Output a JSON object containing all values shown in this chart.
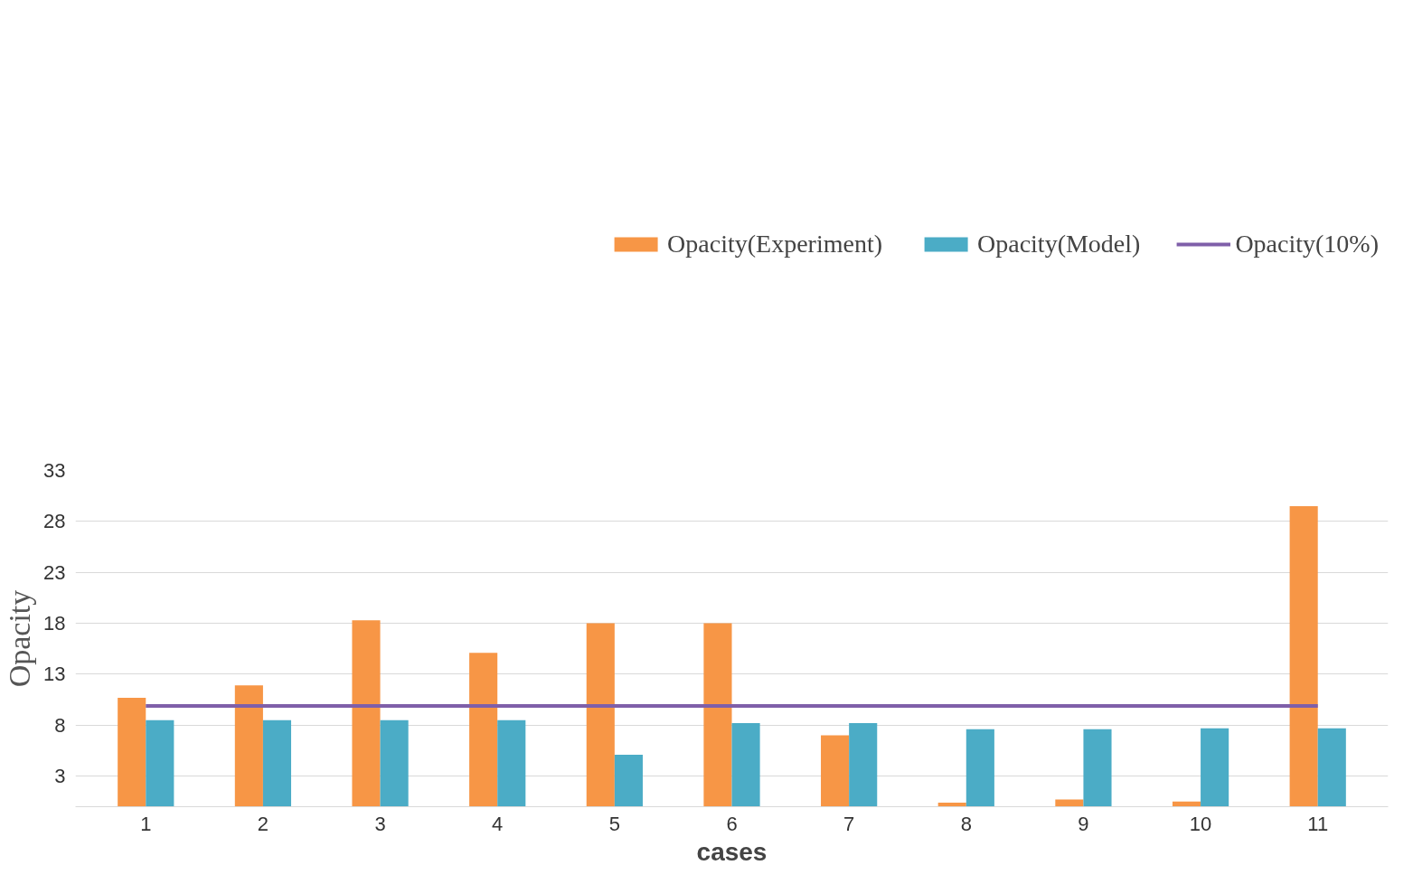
{
  "chart_data": {
    "type": "bar",
    "xlabel": "cases",
    "ylabel": "Opacity",
    "categories": [
      "1",
      "2",
      "3",
      "4",
      "5",
      "6",
      "7",
      "8",
      "9",
      "10",
      "11"
    ],
    "series": [
      {
        "name": "Opacity(Experiment)",
        "color": "#f79646",
        "values": [
          10.7,
          11.9,
          18.3,
          15.1,
          18.0,
          18.0,
          7.0,
          0.4,
          0.7,
          0.5,
          29.5
        ]
      },
      {
        "name": "Opacity(Model)",
        "color": "#4bacc6",
        "values": [
          8.5,
          8.5,
          8.5,
          8.5,
          5.1,
          8.2,
          8.2,
          7.6,
          7.6,
          7.7,
          7.7
        ]
      },
      {
        "name": "Opacity(10%)",
        "color": "#7f5fa9",
        "type": "line",
        "values": [
          9.9,
          9.9,
          9.9,
          9.9,
          9.9,
          9.9,
          9.9,
          9.9,
          9.9,
          9.9,
          9.9
        ]
      }
    ],
    "ylim": [
      0,
      33
    ],
    "yticks": [
      3,
      8,
      13,
      18,
      23,
      28,
      33
    ],
    "grid": "y",
    "legend": "top right"
  }
}
